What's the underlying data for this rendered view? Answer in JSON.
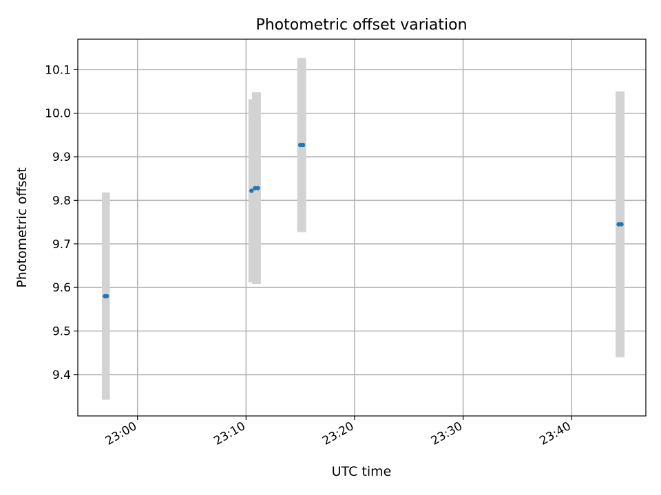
{
  "chart_data": {
    "type": "scatter",
    "title": "Photometric offset variation",
    "xlabel": "UTC time",
    "ylabel": "Photometric offset",
    "xlim": [
      "22:54:30",
      "23:46:50"
    ],
    "ylim": [
      9.305,
      10.17
    ],
    "xticks": [
      "23:00",
      "23:10",
      "23:20",
      "23:30",
      "23:40"
    ],
    "yticks": [
      9.4,
      9.5,
      9.6,
      9.7,
      9.8,
      9.9,
      10.0,
      10.1
    ],
    "grid": true,
    "colors": {
      "points": "#1f77b4",
      "errorbars": "#d3d3d3",
      "grid": "#b0b0b0",
      "axes": "#000000"
    },
    "points": [
      {
        "x": "22:57:00",
        "y": 9.58,
        "err": 0.238
      },
      {
        "x": "22:57:10",
        "y": 9.58,
        "err": 0.238
      },
      {
        "x": "23:10:30",
        "y": 9.822,
        "err": 0.21
      },
      {
        "x": "23:10:50",
        "y": 9.828,
        "err": 0.22
      },
      {
        "x": "23:11:05",
        "y": 9.828,
        "err": 0.22
      },
      {
        "x": "23:15:00",
        "y": 9.927,
        "err": 0.2
      },
      {
        "x": "23:15:15",
        "y": 9.927,
        "err": 0.2
      },
      {
        "x": "23:44:20",
        "y": 9.745,
        "err": 0.305
      },
      {
        "x": "23:44:35",
        "y": 9.745,
        "err": 0.305
      }
    ]
  }
}
